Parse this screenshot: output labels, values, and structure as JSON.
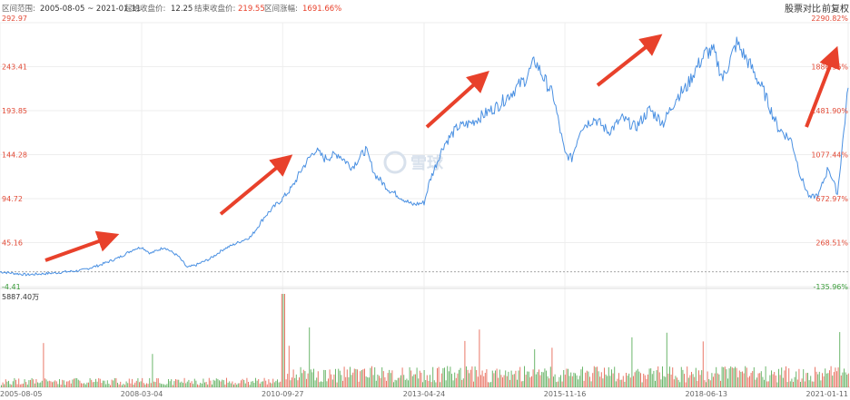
{
  "header": {
    "range_label": "区间范围:",
    "range_value": "2005-08-05 ~ 2021-01-11",
    "start_label": "起始收盘价:",
    "start_value": "12.25",
    "end_label": "结束收盘价:",
    "end_value": "219.55",
    "change_label": "区间涨幅:",
    "change_value": "1691.66%"
  },
  "toolbar": {
    "compare": "股票对比",
    "adjust": "前复权"
  },
  "watermark": "雪球",
  "volume_max_label": "5887.40万",
  "colors": {
    "line": "#4a90e2",
    "up": "#e24a36",
    "down": "#3a9d3a",
    "arrow": "#e8412b",
    "grid": "#eeeeee",
    "baseline": "#999999"
  },
  "chart_data": {
    "type": "line",
    "title": "",
    "xlabel": "",
    "ylabel": "",
    "ylim": [
      -4.41,
      292.97
    ],
    "pct_range": [
      -135.96,
      2290.82
    ],
    "baseline": 12.25,
    "y_ticks": [
      "292.97",
      "243.41",
      "193.85",
      "144.28",
      "94.72",
      "45.16",
      "-4.41"
    ],
    "y_ticks_right": [
      "2290.82%",
      "1886.36%",
      "1481.90%",
      "1077.44%",
      "672.97%",
      "268.51%",
      "-135.96%"
    ],
    "x_ticks": [
      "2005-08-05",
      "2008-03-04",
      "2010-09-27",
      "2013-04-24",
      "2015-11-16",
      "2018-06-13",
      "2021-01-11"
    ],
    "series": [
      {
        "x": [
          "2005-08-05",
          "2006-02-01",
          "2006-08-01",
          "2007-02-01",
          "2007-06-01",
          "2007-10-01",
          "2008-01-15",
          "2008-03-04",
          "2008-05-01",
          "2008-08-01",
          "2008-11-01",
          "2009-01-01",
          "2009-03-01",
          "2009-06-01",
          "2009-09-01",
          "2009-12-01",
          "2010-03-01",
          "2010-06-01",
          "2010-09-27",
          "2010-12-01",
          "2011-02-01",
          "2011-05-01",
          "2011-07-01",
          "2011-10-01",
          "2012-01-01",
          "2012-04-01",
          "2012-06-01",
          "2012-09-01",
          "2012-12-01",
          "2013-02-01",
          "2013-04-24",
          "2013-06-01",
          "2013-09-01",
          "2013-12-01",
          "2014-03-01",
          "2014-06-01",
          "2014-09-01",
          "2014-12-01",
          "2015-03-01",
          "2015-05-01",
          "2015-07-01",
          "2015-09-01",
          "2015-11-16",
          "2016-01-01",
          "2016-03-01",
          "2016-06-01",
          "2016-09-01",
          "2016-12-01",
          "2017-03-01",
          "2017-06-01",
          "2017-09-01",
          "2017-12-01",
          "2018-02-01",
          "2018-04-01",
          "2018-06-13",
          "2018-08-01",
          "2018-10-01",
          "2019-01-01",
          "2019-04-01",
          "2019-07-01",
          "2019-10-01",
          "2020-01-01",
          "2020-03-01",
          "2020-05-01",
          "2020-07-01",
          "2020-09-01",
          "2020-11-01",
          "2021-01-11"
        ],
        "values": [
          12.25,
          9.0,
          11.0,
          14.0,
          20.0,
          28.0,
          38.0,
          40.0,
          33.0,
          40.0,
          30.0,
          17.0,
          20.0,
          27.0,
          38.0,
          45.0,
          52.0,
          75.0,
          95.0,
          108.0,
          128.0,
          150.0,
          140.0,
          145.0,
          130.0,
          150.0,
          122.0,
          105.0,
          95.0,
          88.0,
          90.0,
          115.0,
          155.0,
          175.0,
          180.0,
          190.0,
          200.0,
          215.0,
          230.0,
          250.0,
          230.0,
          210.0,
          145.0,
          140.0,
          175.0,
          185.0,
          170.0,
          185.0,
          175.0,
          195.0,
          180.0,
          210.0,
          220.0,
          240.0,
          260.0,
          260.0,
          230.0,
          270.0,
          245.0,
          215.0,
          175.0,
          160.0,
          120.0,
          95.0,
          100.0,
          130.0,
          100.0,
          219.55
        ]
      }
    ]
  }
}
